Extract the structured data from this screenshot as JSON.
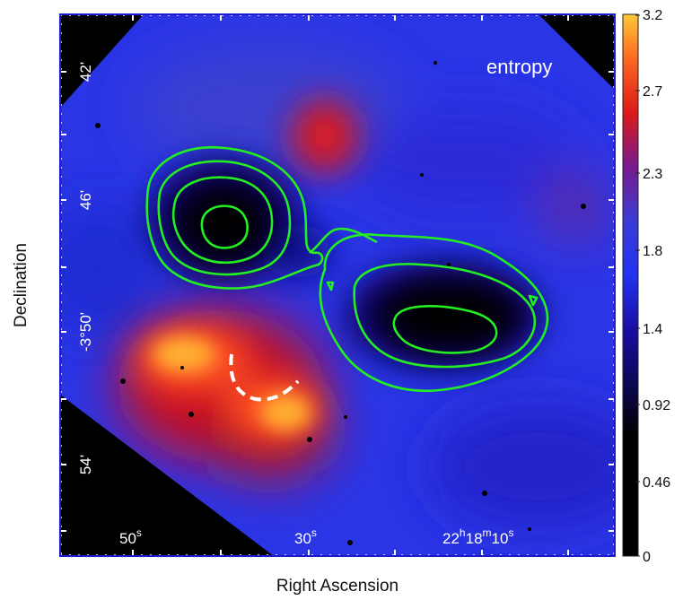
{
  "figure": {
    "panel_label": "entropy",
    "x_axis_title": "Right Ascension",
    "y_axis_title": "Declination",
    "ra_ticks": [
      {
        "main": "50",
        "sup": "s"
      },
      {
        "main": "30",
        "sup": "s"
      },
      {
        "main": "22",
        "sup1": "h",
        "main2": "18",
        "sup2": "m",
        "main3": "10",
        "sup3": "s"
      }
    ],
    "dec_ticks": [
      "42'",
      "46'",
      "-3°50'",
      "54'"
    ],
    "colorbar": {
      "ticks": [
        "3.2",
        "2.7",
        "2.3",
        "1.8",
        "1.4",
        "0.92",
        "0.46",
        "0"
      ],
      "colormap": [
        "#000000",
        "#1a0ea8",
        "#2030f0",
        "#3a3bd8",
        "#7a1a8a",
        "#d81818",
        "#ff6020",
        "#ffc030"
      ]
    },
    "colors": {
      "contour": "#22ee22",
      "frame": "#1a1acc",
      "dashed_arc": "#ffffff"
    }
  }
}
